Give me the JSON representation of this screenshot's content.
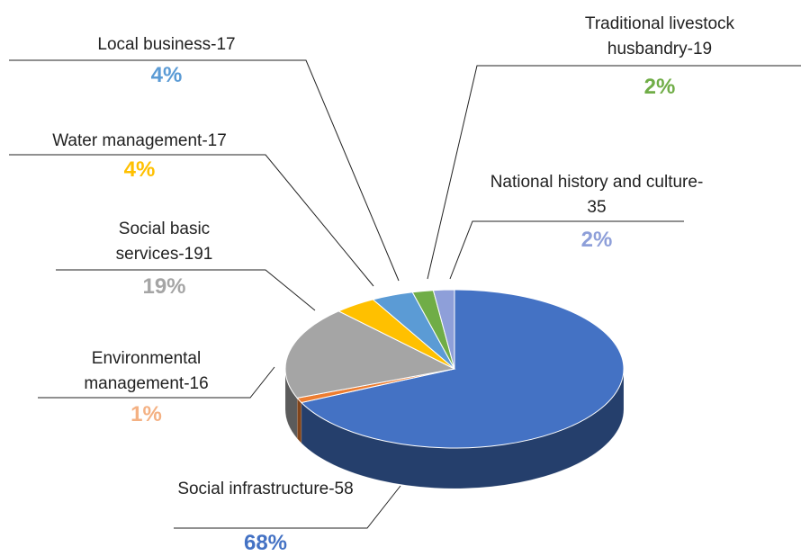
{
  "chart_data": {
    "type": "pie",
    "categories": [
      "Social infrastructure-58",
      "Environmental management-16",
      "Social basic services-191",
      "Water management-17",
      "Local business-17",
      "Traditional livestock husbandry-19",
      "National history and culture-35"
    ],
    "values": [
      68,
      1,
      19,
      4,
      4,
      2,
      2
    ],
    "value_labels": [
      "68%",
      "1%",
      "19%",
      "4%",
      "4%",
      "2%",
      "2%"
    ],
    "colors": [
      "#4472c4",
      "#ed7d31",
      "#a5a5a5",
      "#ffc000",
      "#5b9bd5",
      "#70ad47",
      "#8e9fd9"
    ],
    "label_colors": [
      "#4472c4",
      "#f4b183",
      "#a5a5a5",
      "#ffc000",
      "#5b9bd5",
      "#70ad47",
      "#8e9fd9"
    ]
  }
}
